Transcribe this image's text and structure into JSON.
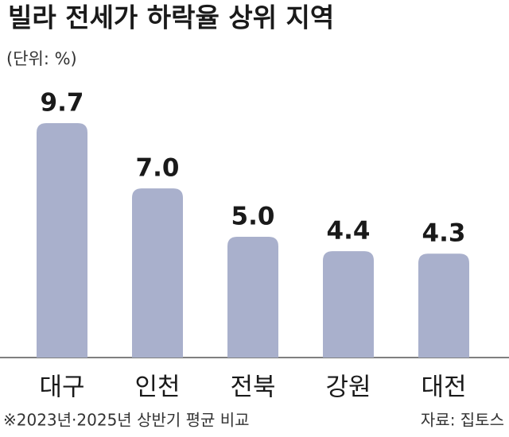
{
  "chart_data": {
    "type": "bar",
    "title": "빌라 전세가 하락율 상위 지역",
    "subtitle": "(단위: %)",
    "categories": [
      "대구",
      "인천",
      "전북",
      "강원",
      "대전"
    ],
    "values": [
      9.7,
      7.0,
      5.0,
      4.4,
      4.3
    ],
    "value_labels": [
      "9.7",
      "7.0",
      "5.0",
      "4.4",
      "4.3"
    ],
    "color": "#a9b0cc",
    "note": "※2023년·2025년 상반기 평균 비교",
    "source": "자료: 집토스"
  }
}
